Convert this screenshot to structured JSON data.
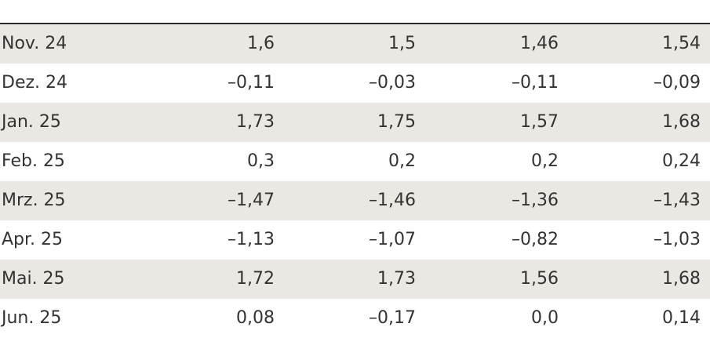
{
  "table": {
    "rows": [
      [
        "Nov. 24",
        "1,6",
        "1,5",
        "1,46",
        "1,54"
      ],
      [
        "Dez. 24",
        "–0,11",
        "–0,03",
        "–0,11",
        "–0,09"
      ],
      [
        "Jan. 25",
        "1,73",
        "1,75",
        "1,57",
        "1,68"
      ],
      [
        "Feb. 25",
        "0,3",
        "0,2",
        "0,2",
        "0,24"
      ],
      [
        "Mrz. 25",
        "–1,47",
        "–1,46",
        "–1,36",
        "–1,43"
      ],
      [
        "Apr. 25",
        "–1,13",
        "–1,07",
        "–0,82",
        "–1,03"
      ],
      [
        "Mai. 25",
        "1,72",
        "1,73",
        "1,56",
        "1,68"
      ],
      [
        "Jun. 25",
        "0,08",
        "–0,17",
        "0,0",
        "0,14"
      ]
    ]
  }
}
